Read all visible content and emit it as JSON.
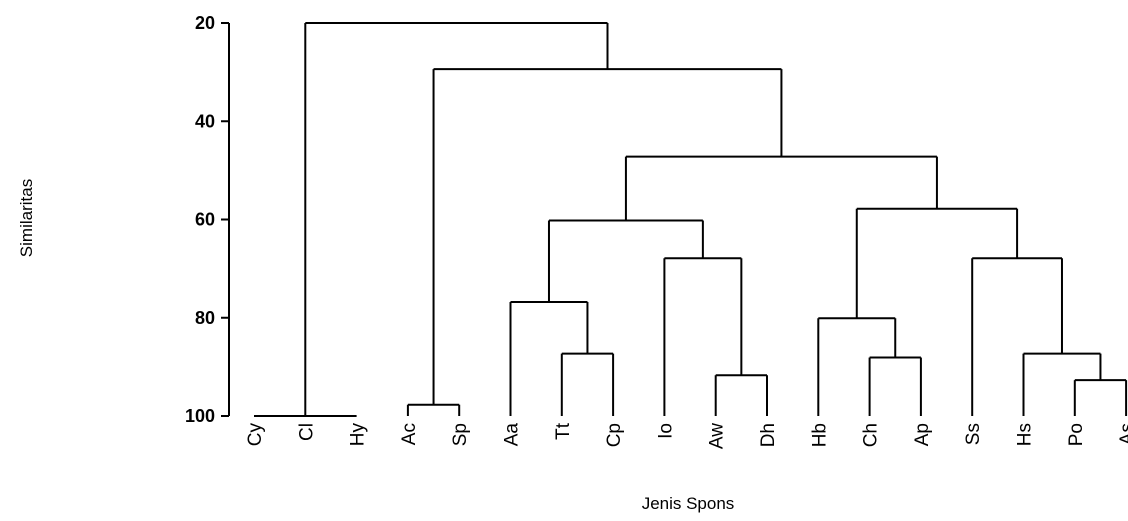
{
  "chart_data": {
    "type": "dendrogram",
    "xlabel": "Jenis Spons",
    "ylabel": "Similaritas",
    "ylim": [
      20,
      100
    ],
    "yticks": [
      20,
      40,
      60,
      80,
      100
    ],
    "leaves": [
      "Cy",
      "Cl",
      "Hy",
      "Ac",
      "Sp",
      "Aa",
      "Tt",
      "Cp",
      "Io",
      "Aw",
      "Dh",
      "Hb",
      "Ch",
      "Ap",
      "Ss",
      "Hs",
      "Po",
      "As"
    ],
    "merges": [
      {
        "id": "n1",
        "children": [
          "Cy",
          "Cl",
          "Hy"
        ],
        "similarity": 100
      },
      {
        "id": "n2",
        "children": [
          "Ac",
          "Sp"
        ],
        "similarity": 97.7
      },
      {
        "id": "n3",
        "children": [
          "Tt",
          "Cp"
        ],
        "similarity": 87.3
      },
      {
        "id": "n4",
        "children": [
          "Aa",
          "n3"
        ],
        "similarity": 76.8
      },
      {
        "id": "n5",
        "children": [
          "Aw",
          "Dh"
        ],
        "similarity": 91.7
      },
      {
        "id": "n6",
        "children": [
          "Io",
          "n5"
        ],
        "similarity": 67.9
      },
      {
        "id": "n7",
        "children": [
          "n4",
          "n6"
        ],
        "similarity": 60.2
      },
      {
        "id": "n8",
        "children": [
          "Ch",
          "Ap"
        ],
        "similarity": 88.1
      },
      {
        "id": "n9",
        "children": [
          "Hb",
          "n8"
        ],
        "similarity": 80.1
      },
      {
        "id": "n10",
        "children": [
          "Po",
          "As"
        ],
        "similarity": 92.7
      },
      {
        "id": "n11",
        "children": [
          "Hs",
          "n10"
        ],
        "similarity": 87.3
      },
      {
        "id": "n12",
        "children": [
          "Ss",
          "n11"
        ],
        "similarity": 67.9
      },
      {
        "id": "n13",
        "children": [
          "n9",
          "n12"
        ],
        "similarity": 57.8
      },
      {
        "id": "n14",
        "children": [
          "n7",
          "n13"
        ],
        "similarity": 47.2
      },
      {
        "id": "n15",
        "children": [
          "n2",
          "n14"
        ],
        "similarity": 29.4
      },
      {
        "id": "n16",
        "children": [
          "n1",
          "n15"
        ],
        "similarity": 20.0
      }
    ]
  }
}
